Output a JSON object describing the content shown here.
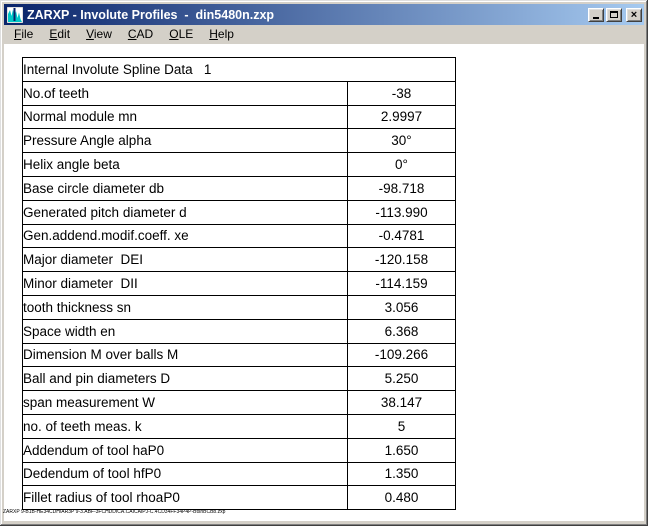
{
  "window": {
    "title": "ZARXP - Involute Profiles  -  din5480n.zxp",
    "controls": {
      "minimize": "minimize",
      "maximize": "maximize",
      "close": "close"
    }
  },
  "menu": {
    "items": [
      {
        "label": "File"
      },
      {
        "label": "Edit"
      },
      {
        "label": "View"
      },
      {
        "label": "CAD"
      },
      {
        "label": "OLE"
      },
      {
        "label": "Help"
      }
    ]
  },
  "table": {
    "title": "Internal Involute Spline Data   1",
    "rows": [
      {
        "label": "No.of teeth",
        "value": "-38"
      },
      {
        "label": "Normal module mn",
        "value": "2.9997"
      },
      {
        "label": "Pressure Angle alpha",
        "value": "30°"
      },
      {
        "label": "Helix angle beta",
        "value": "0°"
      },
      {
        "label": "Base circle diameter db",
        "value": "-98.718"
      },
      {
        "label": "Generated pitch diameter d",
        "value": "-113.990"
      },
      {
        "label": "Gen.addend.modif.coeff. xe",
        "value": "-0.4781"
      },
      {
        "label": "Major diameter  DEI",
        "value": "-120.158"
      },
      {
        "label": "Minor diameter  DII",
        "value": "-114.159"
      },
      {
        "label": "tooth thickness sn",
        "value": "3.056"
      },
      {
        "label": "Space width en",
        "value": "6.368"
      },
      {
        "label": "Dimension M over balls M",
        "value": "-109.266"
      },
      {
        "label": "Ball and pin diameters D",
        "value": "5.250"
      },
      {
        "label": "span measurement W",
        "value": "38.147"
      },
      {
        "label": "no. of teeth meas. k",
        "value": "5"
      },
      {
        "label": "Addendum of tool haP0",
        "value": "1.650"
      },
      {
        "label": "Dedendum of tool hfP0",
        "value": "1.350"
      },
      {
        "label": "Fillet radius of tool rhoaP0",
        "value": "0.480"
      }
    ]
  },
  "footer_text": "ZARXP 9-B1B-HE34CDH/AR3P 9-3.ABF-3FCHDDICA.CAICAIPJ-C.4CD34FF34P4P-BtshBCBb.zxp",
  "colors": {
    "title_gradient_start": "#0A246A",
    "title_gradient_end": "#A6CAF0",
    "chrome": "#D4D0C8",
    "icon_teal": "#00C8C8"
  }
}
